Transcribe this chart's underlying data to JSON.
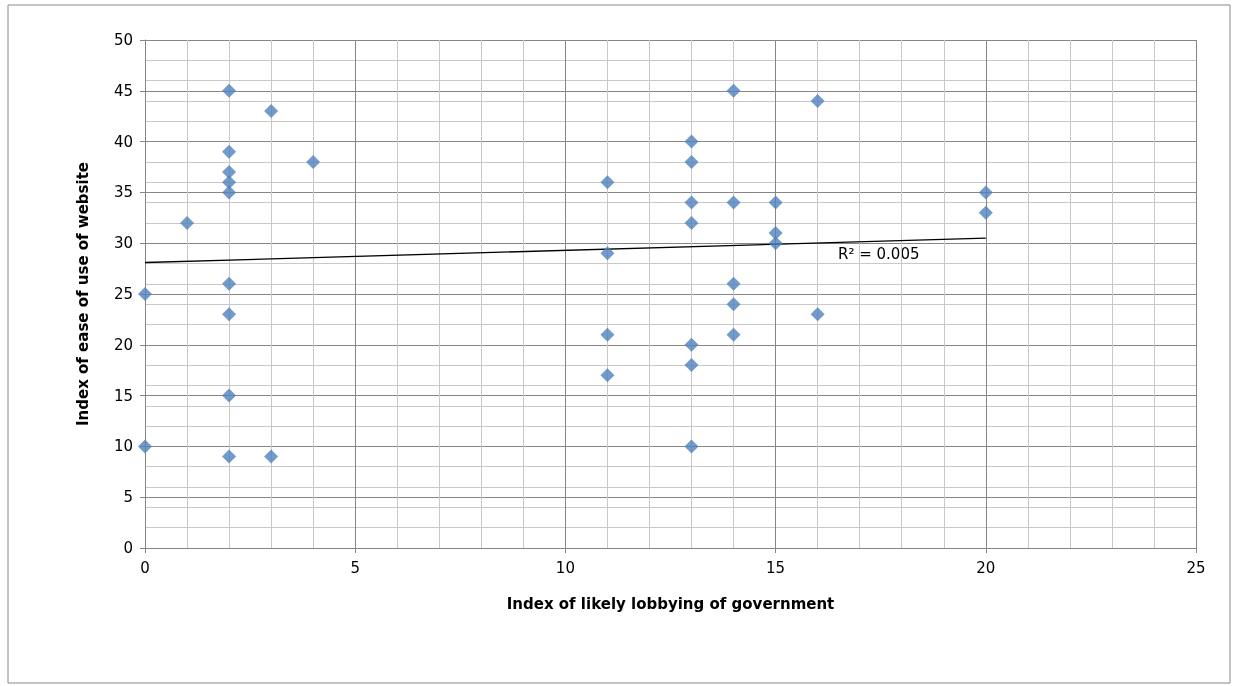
{
  "chart_data": {
    "type": "scatter",
    "xlabel": "Index of likely lobbying of government",
    "ylabel": "Index of ease of use of website",
    "xlim": [
      0,
      25
    ],
    "xticks": [
      0,
      5,
      10,
      15,
      20,
      25
    ],
    "ylim": [
      0,
      50
    ],
    "yticks": [
      0,
      5,
      10,
      15,
      20,
      25,
      30,
      35,
      40,
      45,
      50
    ],
    "grid": true,
    "marker": "diamond",
    "series": [
      {
        "color": "#4f81bd",
        "x": [
          0,
          0,
          1,
          2,
          2,
          2,
          2,
          2,
          2,
          2,
          2,
          2,
          3,
          3,
          4,
          11,
          11,
          11,
          11,
          13,
          13,
          13,
          13,
          13,
          13,
          13,
          14,
          14,
          14,
          14,
          14,
          15,
          15,
          15,
          16,
          16,
          20,
          20
        ],
        "values": [
          25,
          10,
          32,
          45,
          39,
          37,
          36,
          35,
          26,
          23,
          15,
          9,
          43,
          9,
          38,
          36,
          29,
          21,
          17,
          40,
          38,
          34,
          32,
          20,
          18,
          10,
          45,
          34,
          26,
          24,
          21,
          34,
          31,
          30,
          44,
          23,
          35,
          33
        ]
      },
      {
        "type": "line",
        "color": "#000000",
        "marker": "none",
        "x": [
          0,
          20
        ],
        "values": [
          28.1,
          30.5
        ]
      }
    ],
    "annotations": [
      "R² = 0.005"
    ]
  }
}
